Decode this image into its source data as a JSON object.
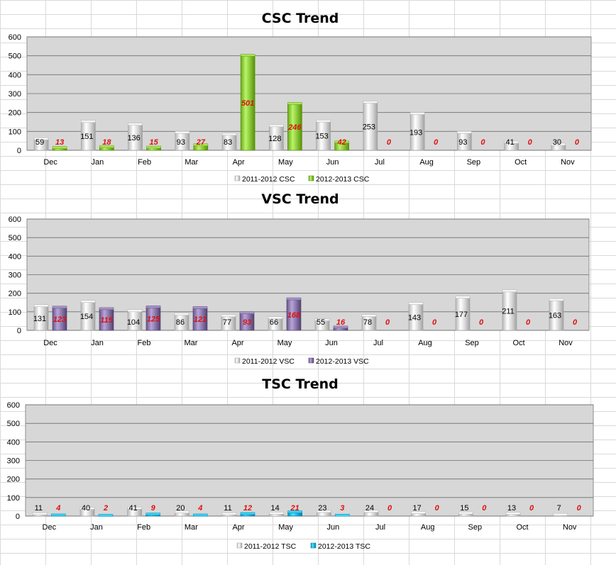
{
  "chart_data": [
    {
      "type": "bar",
      "title": "CSC Trend",
      "categories": [
        "Dec",
        "Jan",
        "Feb",
        "Mar",
        "Apr",
        "May",
        "Jun",
        "Jul",
        "Aug",
        "Sep",
        "Oct",
        "Nov"
      ],
      "series": [
        {
          "name": "2011-2012 CSC",
          "values": [
            59,
            151,
            136,
            93,
            83,
            128,
            153,
            253,
            193,
            93,
            41,
            30
          ],
          "color": "#d9d9d9"
        },
        {
          "name": "2012-2013 CSC",
          "values": [
            13,
            18,
            15,
            27,
            501,
            246,
            42,
            0,
            0,
            0,
            0,
            0
          ],
          "color": "#8cc83c"
        }
      ],
      "yticks": [
        "0",
        "100",
        "200",
        "300",
        "400",
        "500",
        "600"
      ],
      "ylim": [
        0,
        600
      ],
      "grid": true,
      "legend": "bottom",
      "plot_background": "#d7d7d7"
    },
    {
      "type": "bar",
      "title": "VSC Trend",
      "categories": [
        "Dec",
        "Jan",
        "Feb",
        "Mar",
        "Apr",
        "May",
        "Jun",
        "Jul",
        "Aug",
        "Sep",
        "Oct",
        "Nov"
      ],
      "series": [
        {
          "name": "2011-2012 VSC",
          "values": [
            131,
            154,
            104,
            86,
            77,
            66,
            55,
            78,
            143,
            177,
            211,
            163
          ],
          "color": "#d9d9d9"
        },
        {
          "name": "2012-2013 VSC",
          "values": [
            123,
            115,
            125,
            121,
            93,
            168,
            16,
            0,
            0,
            0,
            0,
            0
          ],
          "color": "#8a78aa"
        }
      ],
      "yticks": [
        "0",
        "100",
        "200",
        "300",
        "400",
        "500",
        "600"
      ],
      "ylim": [
        0,
        600
      ],
      "grid": true,
      "legend": "bottom",
      "plot_background": "#d7d7d7"
    },
    {
      "type": "bar",
      "title": "TSC Trend",
      "categories": [
        "Dec",
        "Jan",
        "Feb",
        "Mar",
        "Apr",
        "May",
        "Jun",
        "Jul",
        "Aug",
        "Sep",
        "Oct",
        "Nov"
      ],
      "series": [
        {
          "name": "2011-2012 TSC",
          "values": [
            11,
            40,
            41,
            20,
            11,
            14,
            23,
            24,
            17,
            15,
            13,
            7
          ],
          "color": "#d9d9d9"
        },
        {
          "name": "2012-2013 TSC",
          "values": [
            4,
            2,
            9,
            4,
            12,
            21,
            3,
            0,
            0,
            0,
            0,
            0
          ],
          "color": "#1eb4dc"
        }
      ],
      "yticks": [
        "0",
        "100",
        "200",
        "300",
        "400",
        "500",
        "600"
      ],
      "ylim": [
        0,
        600
      ],
      "grid": true,
      "legend": "bottom",
      "plot_background": "#d7d7d7"
    }
  ]
}
